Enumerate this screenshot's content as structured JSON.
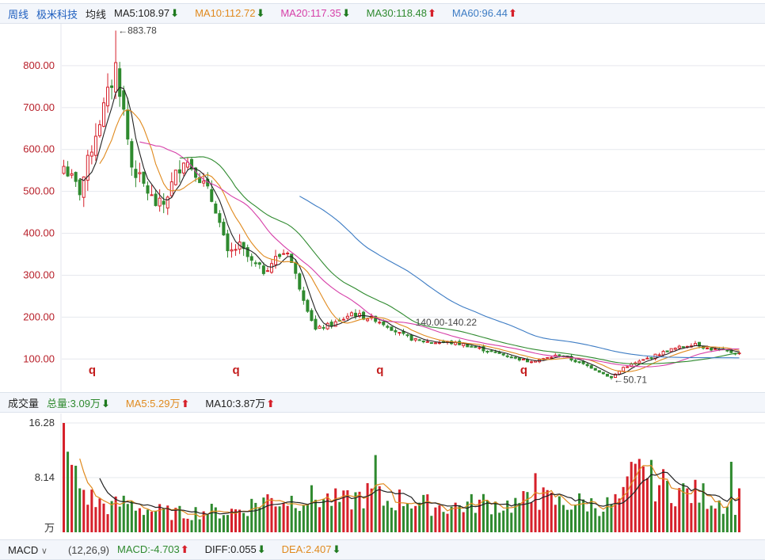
{
  "header": {
    "period": "周线",
    "stock_name": "极米科技",
    "ma_label": "均线",
    "ma5": {
      "label": "MA5:108.97",
      "dir": "down",
      "color": "#222222"
    },
    "ma10": {
      "label": "MA10:112.72",
      "dir": "down",
      "color": "#e08a1e"
    },
    "ma20": {
      "label": "MA20:117.35",
      "dir": "down",
      "color": "#d63fa8"
    },
    "ma30": {
      "label": "MA30:118.48",
      "dir": "up",
      "color": "#2f8a2f"
    },
    "ma60": {
      "label": "MA60:96.44",
      "dir": "up",
      "color": "#3d7cc4"
    }
  },
  "volume_header": {
    "title": "成交量",
    "total": {
      "label": "总量:3.09万",
      "dir": "down",
      "color": "#2f8a2f"
    },
    "ma5": {
      "label": "MA5:5.29万",
      "dir": "up",
      "color": "#e08a1e"
    },
    "ma10": {
      "label": "MA10:3.87万",
      "dir": "up",
      "color": "#222222"
    }
  },
  "macd_header": {
    "title": "MACD",
    "params": "(12,26,9)",
    "macd": {
      "label": "MACD:-4.703",
      "dir": "up",
      "color": "#2f8a2f"
    },
    "diff": {
      "label": "DIFF:0.055",
      "dir": "down",
      "color": "#222222"
    },
    "dea": {
      "label": "DEA:2.407",
      "dir": "down",
      "color": "#e08a1e"
    }
  },
  "colors": {
    "up": "#d6202a",
    "down": "#2f8a2f",
    "grid": "#e6e8ee",
    "axis_text": "#b8202a"
  },
  "annotations": {
    "high": "←883.78",
    "low": "←50.71",
    "mid": "140.00-140.22",
    "markers": [
      "q",
      "q",
      "q",
      "q"
    ]
  },
  "chart_data": [
    {
      "type": "candlestick",
      "y_ticks": [
        "800.00",
        "700.00",
        "600.00",
        "500.00",
        "400.00",
        "300.00",
        "200.00",
        "100.00"
      ],
      "y_tick_values": [
        800,
        700,
        600,
        500,
        400,
        300,
        200,
        100
      ],
      "ylim": [
        40,
        900
      ],
      "high": 883.78,
      "low": 50.71,
      "close_anchors": [
        [
          0,
          560
        ],
        [
          4,
          500
        ],
        [
          8,
          640
        ],
        [
          12,
          760
        ],
        [
          13,
          800
        ],
        [
          15,
          690
        ],
        [
          17,
          560
        ],
        [
          19,
          530
        ],
        [
          23,
          470
        ],
        [
          25,
          470
        ],
        [
          28,
          540
        ],
        [
          30,
          580
        ],
        [
          33,
          550
        ],
        [
          36,
          500
        ],
        [
          38,
          460
        ],
        [
          41,
          350
        ],
        [
          44,
          370
        ],
        [
          47,
          330
        ],
        [
          50,
          310
        ],
        [
          53,
          340
        ],
        [
          56,
          360
        ],
        [
          58,
          300
        ],
        [
          61,
          220
        ],
        [
          63,
          170
        ],
        [
          66,
          180
        ],
        [
          69,
          190
        ],
        [
          72,
          210
        ],
        [
          75,
          200
        ],
        [
          78,
          195
        ],
        [
          81,
          180
        ],
        [
          84,
          160
        ],
        [
          88,
          145
        ],
        [
          92,
          140
        ],
        [
          96,
          140
        ],
        [
          100,
          135
        ],
        [
          104,
          125
        ],
        [
          108,
          115
        ],
        [
          112,
          105
        ],
        [
          116,
          95
        ],
        [
          120,
          100
        ],
        [
          124,
          110
        ],
        [
          128,
          95
        ],
        [
          132,
          80
        ],
        [
          135,
          65
        ],
        [
          137,
          55
        ],
        [
          140,
          80
        ],
        [
          143,
          90
        ],
        [
          147,
          105
        ],
        [
          151,
          120
        ],
        [
          155,
          130
        ],
        [
          158,
          138
        ],
        [
          161,
          125
        ],
        [
          165,
          120
        ],
        [
          169,
          113
        ]
      ],
      "series": [
        {
          "name": "MA5",
          "window": 5
        },
        {
          "name": "MA10",
          "window": 10
        },
        {
          "name": "MA20",
          "window": 20
        },
        {
          "name": "MA30",
          "window": 30
        },
        {
          "name": "MA60",
          "window": 60
        }
      ]
    },
    {
      "type": "bar",
      "y_ticks": [
        "16.28",
        "8.14",
        "万"
      ],
      "y_tick_values": [
        16.28,
        8.14,
        0
      ],
      "ylim": [
        0,
        16.28
      ],
      "unit": "万",
      "volume_anchors": [
        [
          0,
          16.28
        ],
        [
          1,
          12
        ],
        [
          3,
          8
        ],
        [
          5,
          6
        ],
        [
          8,
          4.5
        ],
        [
          12,
          3.8
        ],
        [
          16,
          4.5
        ],
        [
          20,
          3.5
        ],
        [
          25,
          3.0
        ],
        [
          30,
          2.8
        ],
        [
          35,
          3.2
        ],
        [
          40,
          3.0
        ],
        [
          45,
          3.5
        ],
        [
          50,
          5.0
        ],
        [
          55,
          4.8
        ],
        [
          60,
          5.2
        ],
        [
          65,
          5.0
        ],
        [
          70,
          4.5
        ],
        [
          75,
          5.5
        ],
        [
          78,
          5.8
        ],
        [
          80,
          4.5
        ],
        [
          85,
          5.0
        ],
        [
          90,
          4.2
        ],
        [
          95,
          3.8
        ],
        [
          100,
          4.0
        ],
        [
          105,
          4.5
        ],
        [
          110,
          4.0
        ],
        [
          115,
          4.5
        ],
        [
          120,
          5.0
        ],
        [
          125,
          4.2
        ],
        [
          130,
          4.5
        ],
        [
          135,
          3.8
        ],
        [
          140,
          5.0
        ],
        [
          143,
          9.5
        ],
        [
          146,
          8.0
        ],
        [
          150,
          7.0
        ],
        [
          155,
          6.0
        ],
        [
          160,
          5.5
        ],
        [
          165,
          4.5
        ],
        [
          168,
          4.2
        ],
        [
          169,
          5.0
        ]
      ],
      "spikes": [
        [
          0,
          16.28
        ],
        [
          1,
          12.0
        ],
        [
          78,
          11.5
        ],
        [
          118,
          8.8
        ],
        [
          143,
          10.2
        ],
        [
          145,
          9.8
        ],
        [
          167,
          10.5
        ]
      ],
      "series": [
        {
          "name": "MA5",
          "window": 5
        },
        {
          "name": "MA10",
          "window": 10
        }
      ]
    }
  ]
}
